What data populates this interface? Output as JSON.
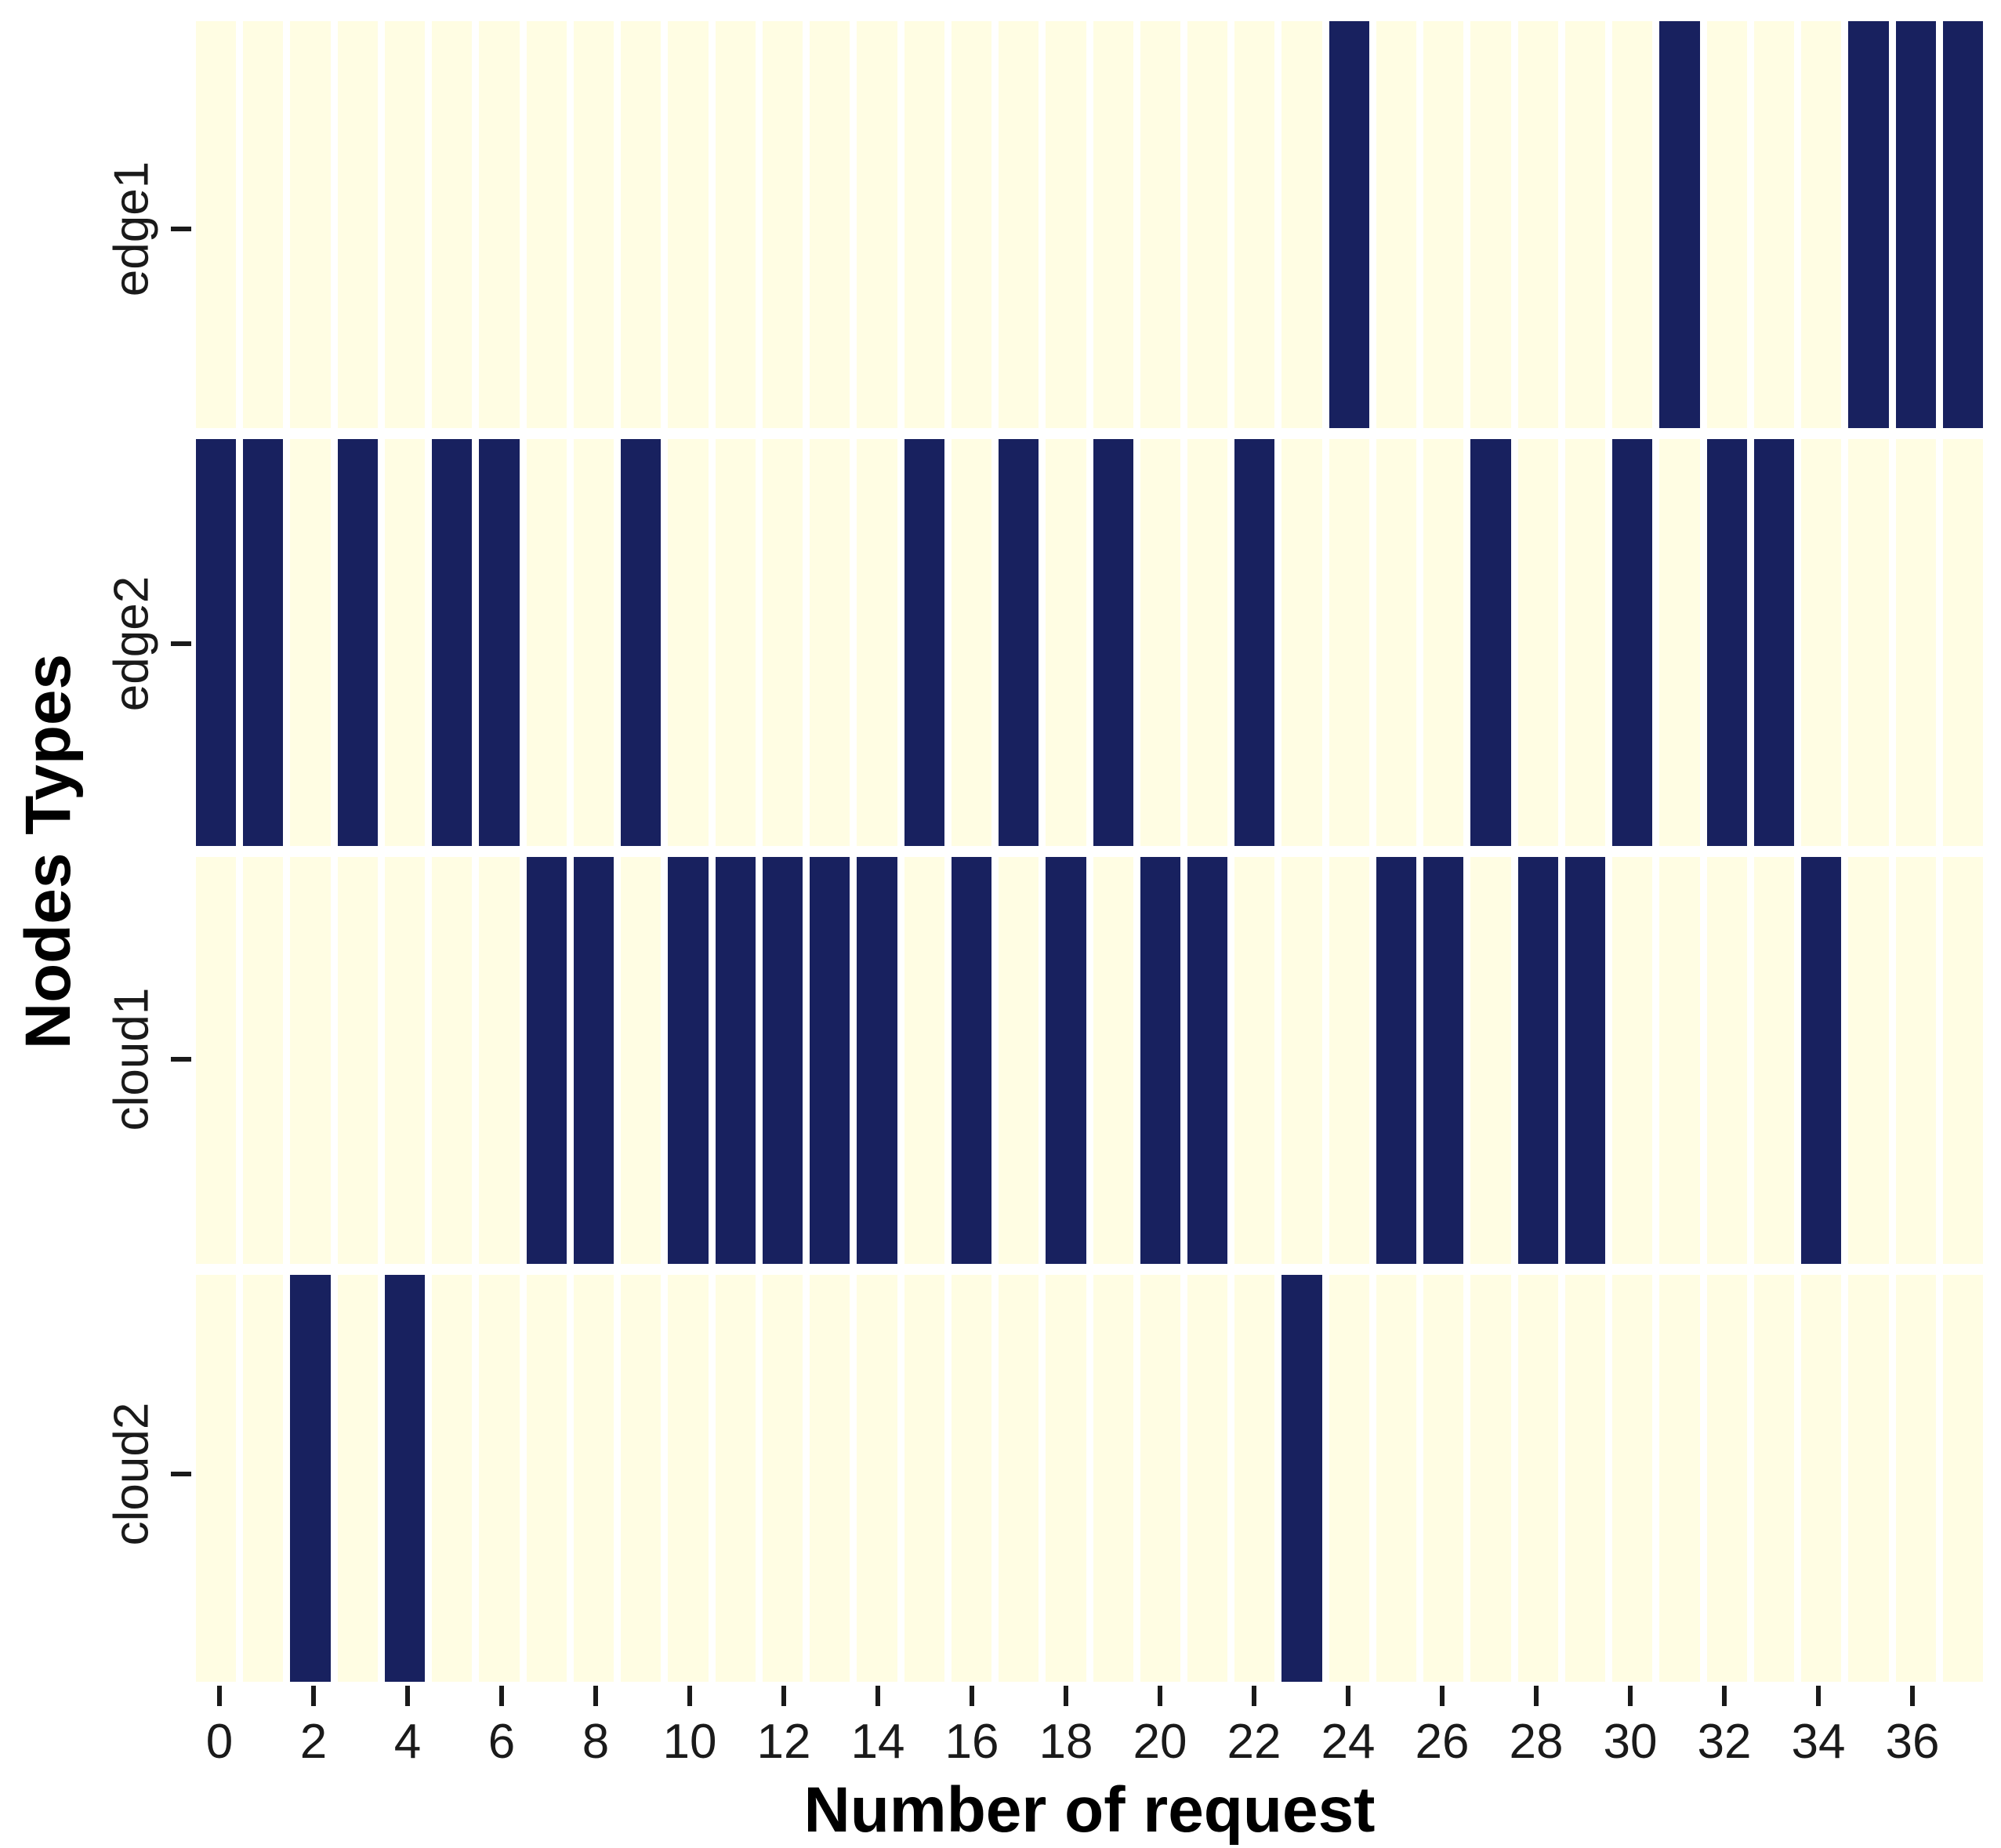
{
  "chart_data": {
    "type": "heatmap",
    "title": "",
    "xlabel": "Number of request",
    "ylabel": "Nodes Types",
    "rows": [
      "edge1",
      "edge2",
      "cloud1",
      "cloud2"
    ],
    "x_min": 0,
    "x_max": 37,
    "x_tick_step": 2,
    "x_tick_labels": [
      "0",
      "2",
      "4",
      "6",
      "8",
      "10",
      "12",
      "14",
      "16",
      "18",
      "20",
      "22",
      "24",
      "26",
      "28",
      "30",
      "32",
      "34",
      "36"
    ],
    "assignments": {
      "edge1": [
        24,
        31,
        35,
        36,
        37
      ],
      "edge2": [
        0,
        1,
        3,
        5,
        6,
        9,
        15,
        17,
        19,
        22,
        27,
        30,
        32,
        33
      ],
      "cloud1": [
        7,
        8,
        10,
        11,
        12,
        13,
        14,
        16,
        18,
        20,
        21,
        25,
        26,
        28,
        29,
        34
      ],
      "cloud2": [
        2,
        4,
        23
      ]
    },
    "cell_value_filled": 1,
    "cell_value_empty": 0,
    "colors": {
      "filled": "#18215f",
      "empty": "#fffde3",
      "grid_gap": "#ffffff",
      "tick": "#1a1a1a",
      "text": "#000000"
    },
    "legend": null,
    "grid_on": true
  }
}
